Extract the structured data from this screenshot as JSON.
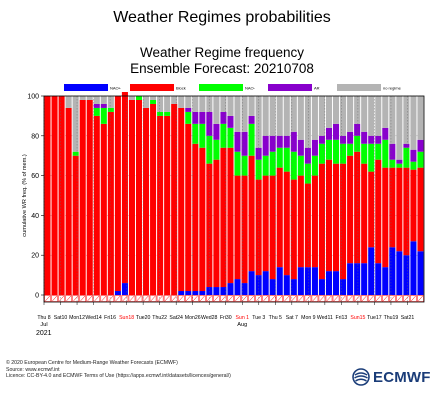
{
  "page_title": "Weather Regimes probabilities",
  "chart_data": {
    "type": "bar",
    "stacked": true,
    "title": "Weather Regime frequency",
    "subtitle": "Ensemble Forecast: 20210708",
    "ylabel": "cumulative WR freq. (% of mem.)",
    "xlabel": "",
    "ylim": [
      0,
      100
    ],
    "yticks": [
      0,
      20,
      40,
      60,
      80,
      100
    ],
    "grid": true,
    "legend_position": "top",
    "colors": {
      "NAO+": "#0000ff",
      "Block": "#ff0000",
      "NAO-": "#00ff00",
      "AR": "#8800cc",
      "no regime": "#b4b4b4"
    },
    "series": [
      {
        "name": "NAO+",
        "values": [
          0,
          0,
          0,
          0,
          0,
          0,
          0,
          0,
          0,
          0,
          2,
          6,
          0,
          0,
          0,
          0,
          0,
          0,
          0,
          2,
          2,
          2,
          2,
          4,
          4,
          4,
          6,
          8,
          6,
          12,
          10,
          12,
          8,
          14,
          10,
          8,
          14,
          14,
          14,
          8,
          12,
          12,
          8,
          16,
          16,
          16,
          24,
          16,
          14,
          24,
          22,
          20,
          27,
          22
        ]
      },
      {
        "name": "Block",
        "values": [
          100,
          100,
          100,
          94,
          70,
          98,
          98,
          90,
          86,
          92,
          98,
          96,
          98,
          98,
          94,
          96,
          90,
          90,
          96,
          92,
          84,
          74,
          72,
          62,
          64,
          70,
          68,
          52,
          54,
          58,
          48,
          48,
          52,
          50,
          52,
          50,
          46,
          42,
          46,
          58,
          56,
          54,
          58,
          54,
          56,
          50,
          38,
          52,
          50,
          40,
          42,
          44,
          36,
          42
        ]
      },
      {
        "name": "NAO-",
        "values": [
          0,
          0,
          0,
          0,
          2,
          0,
          0,
          4,
          8,
          2,
          0,
          0,
          0,
          2,
          0,
          2,
          2,
          2,
          0,
          0,
          6,
          10,
          12,
          14,
          10,
          12,
          10,
          12,
          10,
          16,
          10,
          10,
          12,
          10,
          12,
          14,
          10,
          10,
          10,
          10,
          10,
          12,
          10,
          6,
          8,
          10,
          14,
          8,
          14,
          4,
          2,
          10,
          4,
          8
        ]
      },
      {
        "name": "AR",
        "values": [
          0,
          0,
          0,
          0,
          0,
          0,
          0,
          2,
          2,
          0,
          0,
          0,
          0,
          0,
          0,
          0,
          0,
          0,
          0,
          0,
          2,
          6,
          6,
          12,
          8,
          6,
          6,
          10,
          12,
          4,
          6,
          10,
          8,
          6,
          6,
          10,
          8,
          8,
          8,
          4,
          6,
          8,
          4,
          6,
          6,
          6,
          4,
          4,
          6,
          8,
          2,
          2,
          6,
          6
        ]
      },
      {
        "name": "no regime",
        "values": [
          0,
          0,
          0,
          6,
          28,
          2,
          2,
          4,
          4,
          6,
          0,
          -2,
          2,
          0,
          6,
          2,
          8,
          8,
          4,
          6,
          6,
          8,
          8,
          8,
          14,
          8,
          10,
          18,
          18,
          10,
          26,
          20,
          20,
          20,
          20,
          18,
          22,
          26,
          22,
          20,
          16,
          14,
          20,
          18,
          14,
          18,
          20,
          20,
          16,
          24,
          32,
          24,
          27,
          22
        ]
      }
    ],
    "x_ticks": [
      {
        "label": "Thu 8",
        "color": "#000000"
      },
      {
        "label": "Sat10",
        "color": "#000000"
      },
      {
        "label": "Mon12",
        "color": "#000000"
      },
      {
        "label": "Wed14",
        "color": "#000000"
      },
      {
        "label": "Fri16",
        "color": "#000000"
      },
      {
        "label": "Sun18",
        "color": "#ff0000"
      },
      {
        "label": "Tue20",
        "color": "#000000"
      },
      {
        "label": "Thu22",
        "color": "#000000"
      },
      {
        "label": "Sat24",
        "color": "#000000"
      },
      {
        "label": "Mon26",
        "color": "#000000"
      },
      {
        "label": "Wed28",
        "color": "#000000"
      },
      {
        "label": "Fri30",
        "color": "#000000"
      },
      {
        "label": "Sun 1",
        "color": "#ff0000"
      },
      {
        "label": "Tue 3",
        "color": "#000000"
      },
      {
        "label": "Thu 5",
        "color": "#000000"
      },
      {
        "label": "Sat 7",
        "color": "#000000"
      },
      {
        "label": "Mon 9",
        "color": "#000000"
      },
      {
        "label": "Wed11",
        "color": "#000000"
      },
      {
        "label": "Fri13",
        "color": "#000000"
      },
      {
        "label": "Sun15",
        "color": "#ff0000"
      },
      {
        "label": "Tue17",
        "color": "#000000"
      },
      {
        "label": "Thu19",
        "color": "#000000"
      },
      {
        "label": "Sat21",
        "color": "#000000"
      }
    ],
    "month_labels": [
      {
        "label": "Jul",
        "year": "2021",
        "tick_index": 0
      },
      {
        "label": "Aug",
        "year": "",
        "tick_index": 12
      }
    ]
  },
  "footer": {
    "line1": "© 2020 European Centre for Medium-Range Weather Forecasts (ECMWF)",
    "line2": "Source: www.ecmwf.int",
    "line3": "Licence: CC-BY-4.0 and ECMWF Terms of Use (https://apps.ecmwf.int/datasets/licences/general/)"
  },
  "logo": {
    "text": "ECMWF",
    "icon": "ecmwf-globe-icon",
    "color": "#1a3c78"
  }
}
